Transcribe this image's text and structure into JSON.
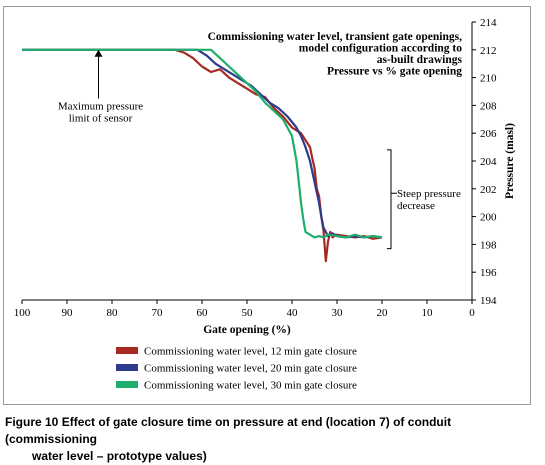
{
  "caption": {
    "prefix": "Figure 10",
    "line1": "Effect of gate closure time on pressure at end (location 7) of conduit (commissioning",
    "line2": "water level – prototype values)"
  },
  "chart_data": {
    "type": "line",
    "title_lines": [
      "Commissioning water level, transient gate openings,",
      "model configuration according to",
      "as-built drawings",
      "Pressure vs % gate opening"
    ],
    "xlabel": "Gate opening (%)",
    "ylabel": "Pressure (masl)",
    "xlim": [
      100,
      0
    ],
    "x_reversed": true,
    "ylim": [
      194,
      214
    ],
    "x_ticks": [
      "100",
      "90",
      "80",
      "70",
      "60",
      "50",
      "40",
      "30",
      "20",
      "10",
      "0"
    ],
    "y_ticks": [
      "194",
      "196",
      "198",
      "200",
      "202",
      "204",
      "206",
      "208",
      "210",
      "212",
      "214"
    ],
    "y_axis_side": "right",
    "grid": false,
    "legend_position": "bottom",
    "annotations": {
      "max_pressure": {
        "lines": [
          "Maximum pressure",
          "limit of  sensor"
        ],
        "arrow_x": 83,
        "arrow_y_from": 208.5,
        "arrow_y_to": 212
      },
      "steep": {
        "lines": [
          "Steep pressure",
          "decrease"
        ],
        "y_top": 204.8,
        "y_bottom": 197.7,
        "x": 18
      }
    },
    "series": [
      {
        "name": "Commissioning water level, 12 min gate closure",
        "color": "#a62a22",
        "x": [
          100,
          66,
          64,
          62,
          60,
          58,
          56,
          54,
          52,
          50,
          48,
          46,
          44,
          42,
          40,
          38,
          37,
          36,
          35.5,
          35,
          34.5,
          34,
          33.5,
          33,
          32.5,
          32,
          31.5,
          31,
          30,
          28,
          26,
          24,
          22,
          20
        ],
        "y": [
          212,
          212,
          211.8,
          211.4,
          210.8,
          210.4,
          210.6,
          210,
          209.6,
          209.2,
          208.8,
          208.6,
          207.8,
          207.2,
          206.4,
          206,
          205.5,
          205,
          204.2,
          203.5,
          202,
          201.5,
          200,
          199,
          196.8,
          198.2,
          198.9,
          198.5,
          198.7,
          198.6,
          198.5,
          198.6,
          198.4,
          198.5
        ]
      },
      {
        "name": "Commissioning water level, 20 min gate closure",
        "color": "#2e3b8c",
        "x": [
          100,
          61,
          59,
          57,
          55,
          53,
          51,
          49,
          47,
          45,
          43,
          41,
          39,
          38,
          37,
          36,
          35,
          34,
          33.5,
          33,
          32,
          31,
          30,
          28,
          26,
          24,
          22,
          20
        ],
        "y": [
          212,
          212,
          211.6,
          211,
          210.6,
          210.2,
          209.8,
          209.4,
          208.8,
          208.2,
          207.8,
          207.2,
          206.4,
          205.8,
          205,
          204,
          202.5,
          201,
          200,
          199.2,
          198.6,
          198.8,
          198.6,
          198.5,
          198.6,
          198.5,
          198.6,
          198.5
        ]
      },
      {
        "name": "Commissioning water level, 30 min gate closure",
        "color": "#1fae6c",
        "x": [
          100,
          58,
          56,
          54,
          52,
          50,
          48,
          46,
          44,
          42,
          41,
          40,
          39,
          38.5,
          38,
          37.5,
          37,
          36,
          35,
          34,
          33,
          32,
          30,
          28,
          26,
          24,
          22,
          20
        ],
        "y": [
          212,
          212,
          211.4,
          210.8,
          210.2,
          209.6,
          209,
          208.2,
          207.6,
          207,
          206.4,
          205.8,
          204,
          202.5,
          201,
          199.8,
          198.9,
          198.7,
          198.5,
          198.6,
          198.5,
          198.7,
          198.6,
          198.5,
          198.7,
          198.5,
          198.6,
          198.5
        ]
      }
    ]
  }
}
